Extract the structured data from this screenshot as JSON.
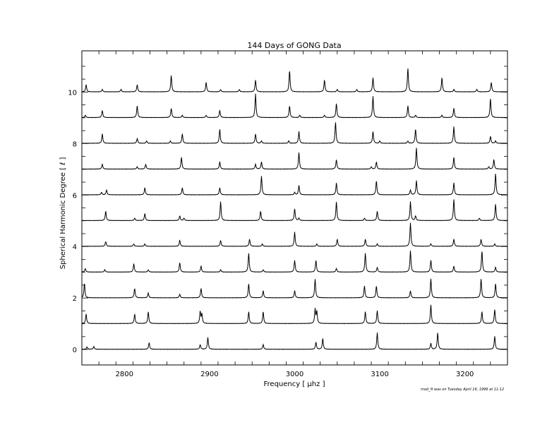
{
  "chart_data": {
    "type": "line",
    "title": "144 Days of GONG Data",
    "xlabel": "Frequency [ μhz ]",
    "ylabel": "Spherical Harmonic Degree [ ℓ ]",
    "xlim": [
      2750,
      3250
    ],
    "ylim": [
      -0.6,
      11.6
    ],
    "xticks": [
      2800,
      2900,
      3000,
      3100,
      3200
    ],
    "yticks": [
      0,
      2,
      4,
      6,
      8,
      10
    ],
    "grid": false,
    "series": [
      {
        "degree": 0,
        "peaks": [
          [
            2756,
            0.1
          ],
          [
            2764,
            0.12
          ],
          [
            2829,
            0.28
          ],
          [
            2889,
            0.2
          ],
          [
            2898,
            0.5
          ],
          [
            2963,
            0.2
          ],
          [
            3025,
            0.3
          ],
          [
            3033,
            0.45
          ],
          [
            3097,
            0.7
          ],
          [
            3160,
            0.25
          ],
          [
            3168,
            0.7
          ],
          [
            3235,
            0.55
          ]
        ]
      },
      {
        "degree": 1,
        "peaks": [
          [
            2755,
            0.4
          ],
          [
            2812,
            0.4
          ],
          [
            2828,
            0.5
          ],
          [
            2889,
            0.5
          ],
          [
            2891,
            0.4
          ],
          [
            2946,
            0.5
          ],
          [
            2963,
            0.5
          ],
          [
            3024,
            0.6
          ],
          [
            3026,
            0.5
          ],
          [
            3083,
            0.5
          ],
          [
            3097,
            0.55
          ],
          [
            3160,
            0.8
          ],
          [
            3220,
            0.5
          ],
          [
            3235,
            0.6
          ]
        ]
      },
      {
        "degree": 2,
        "peaks": [
          [
            2753,
            0.6
          ],
          [
            2812,
            0.4
          ],
          [
            2828,
            0.2
          ],
          [
            2865,
            0.15
          ],
          [
            2890,
            0.4
          ],
          [
            2946,
            0.6
          ],
          [
            2963,
            0.3
          ],
          [
            3000,
            0.3
          ],
          [
            3024,
            0.8
          ],
          [
            3082,
            0.5
          ],
          [
            3096,
            0.5
          ],
          [
            3136,
            0.3
          ],
          [
            3160,
            0.8
          ],
          [
            3219,
            0.8
          ],
          [
            3236,
            0.6
          ]
        ]
      },
      {
        "degree": 3,
        "peaks": [
          [
            2754,
            0.15
          ],
          [
            2777,
            0.1
          ],
          [
            2811,
            0.35
          ],
          [
            2828,
            0.1
          ],
          [
            2865,
            0.4
          ],
          [
            2890,
            0.25
          ],
          [
            2913,
            0.1
          ],
          [
            2946,
            0.8
          ],
          [
            2963,
            0.1
          ],
          [
            3000,
            0.5
          ],
          [
            3025,
            0.5
          ],
          [
            3049,
            0.15
          ],
          [
            3083,
            0.8
          ],
          [
            3097,
            0.2
          ],
          [
            3136,
            0.9
          ],
          [
            3160,
            0.5
          ],
          [
            3187,
            0.25
          ],
          [
            3220,
            0.9
          ],
          [
            3236,
            0.2
          ]
        ]
      },
      {
        "degree": 4,
        "peaks": [
          [
            2778,
            0.2
          ],
          [
            2811,
            0.1
          ],
          [
            2824,
            0.1
          ],
          [
            2865,
            0.25
          ],
          [
            2913,
            0.25
          ],
          [
            2947,
            0.3
          ],
          [
            2962,
            0.1
          ],
          [
            3000,
            0.6
          ],
          [
            3026,
            0.1
          ],
          [
            3050,
            0.3
          ],
          [
            3083,
            0.3
          ],
          [
            3097,
            0.1
          ],
          [
            3136,
            1.0
          ],
          [
            3160,
            0.1
          ],
          [
            3187,
            0.3
          ],
          [
            3219,
            0.3
          ],
          [
            3235,
            0.1
          ]
        ]
      },
      {
        "degree": 5,
        "peaks": [
          [
            2778,
            0.4
          ],
          [
            2812,
            0.1
          ],
          [
            2824,
            0.3
          ],
          [
            2865,
            0.2
          ],
          [
            2870,
            0.1
          ],
          [
            2913,
            0.8
          ],
          [
            2960,
            0.4
          ],
          [
            3000,
            0.5
          ],
          [
            3005,
            0.1
          ],
          [
            3049,
            0.8
          ],
          [
            3082,
            0.1
          ],
          [
            3097,
            0.4
          ],
          [
            3136,
            0.8
          ],
          [
            3142,
            0.2
          ],
          [
            3187,
            0.9
          ],
          [
            3217,
            0.1
          ],
          [
            3236,
            0.7
          ]
        ]
      },
      {
        "degree": 6,
        "peaks": [
          [
            2773,
            0.1
          ],
          [
            2779,
            0.2
          ],
          [
            2824,
            0.3
          ],
          [
            2868,
            0.3
          ],
          [
            2912,
            0.3
          ],
          [
            2961,
            0.8
          ],
          [
            3000,
            0.1
          ],
          [
            3005,
            0.4
          ],
          [
            3049,
            0.5
          ],
          [
            3096,
            0.6
          ],
          [
            3136,
            0.2
          ],
          [
            3143,
            0.6
          ],
          [
            3187,
            0.5
          ],
          [
            3236,
            0.9
          ]
        ]
      },
      {
        "degree": 7,
        "peaks": [
          [
            2774,
            0.2
          ],
          [
            2815,
            0.1
          ],
          [
            2825,
            0.2
          ],
          [
            2867,
            0.5
          ],
          [
            2912,
            0.3
          ],
          [
            2954,
            0.2
          ],
          [
            2961,
            0.3
          ],
          [
            3005,
            0.7
          ],
          [
            3049,
            0.4
          ],
          [
            3090,
            0.1
          ],
          [
            3096,
            0.3
          ],
          [
            3143,
            0.9
          ],
          [
            3187,
            0.5
          ],
          [
            3228,
            0.1
          ],
          [
            3234,
            0.4
          ]
        ]
      },
      {
        "degree": 8,
        "peaks": [
          [
            2774,
            0.4
          ],
          [
            2815,
            0.2
          ],
          [
            2826,
            0.1
          ],
          [
            2854,
            0.1
          ],
          [
            2868,
            0.4
          ],
          [
            2912,
            0.6
          ],
          [
            2954,
            0.4
          ],
          [
            2961,
            0.1
          ],
          [
            2993,
            0.1
          ],
          [
            3005,
            0.5
          ],
          [
            3048,
            0.9
          ],
          [
            3092,
            0.5
          ],
          [
            3100,
            0.1
          ],
          [
            3133,
            0.1
          ],
          [
            3142,
            0.6
          ],
          [
            3187,
            0.7
          ],
          [
            3230,
            0.3
          ],
          [
            3236,
            0.1
          ]
        ]
      },
      {
        "degree": 9,
        "peaks": [
          [
            2754,
            0.1
          ],
          [
            2774,
            0.3
          ],
          [
            2815,
            0.5
          ],
          [
            2855,
            0.4
          ],
          [
            2868,
            0.1
          ],
          [
            2896,
            0.1
          ],
          [
            2912,
            0.3
          ],
          [
            2954,
            1.0
          ],
          [
            2994,
            0.5
          ],
          [
            3006,
            0.1
          ],
          [
            3035,
            0.1
          ],
          [
            3049,
            0.6
          ],
          [
            3092,
            0.9
          ],
          [
            3133,
            0.5
          ],
          [
            3142,
            0.1
          ],
          [
            3173,
            0.1
          ],
          [
            3187,
            0.4
          ],
          [
            3230,
            0.8
          ]
        ]
      },
      {
        "degree": 10,
        "peaks": [
          [
            2755,
            0.3
          ],
          [
            2774,
            0.1
          ],
          [
            2796,
            0.1
          ],
          [
            2815,
            0.3
          ],
          [
            2855,
            0.7
          ],
          [
            2896,
            0.4
          ],
          [
            2913,
            0.1
          ],
          [
            2935,
            0.1
          ],
          [
            2954,
            0.5
          ],
          [
            2994,
            0.9
          ],
          [
            3035,
            0.5
          ],
          [
            3050,
            0.1
          ],
          [
            3073,
            0.1
          ],
          [
            3092,
            0.6
          ],
          [
            3133,
            1.0
          ],
          [
            3173,
            0.6
          ],
          [
            3187,
            0.1
          ],
          [
            3214,
            0.1
          ],
          [
            3231,
            0.4
          ]
        ]
      }
    ]
  },
  "footnote": "mod_ft was on Tuesday April 16, 1996 at 11:12"
}
